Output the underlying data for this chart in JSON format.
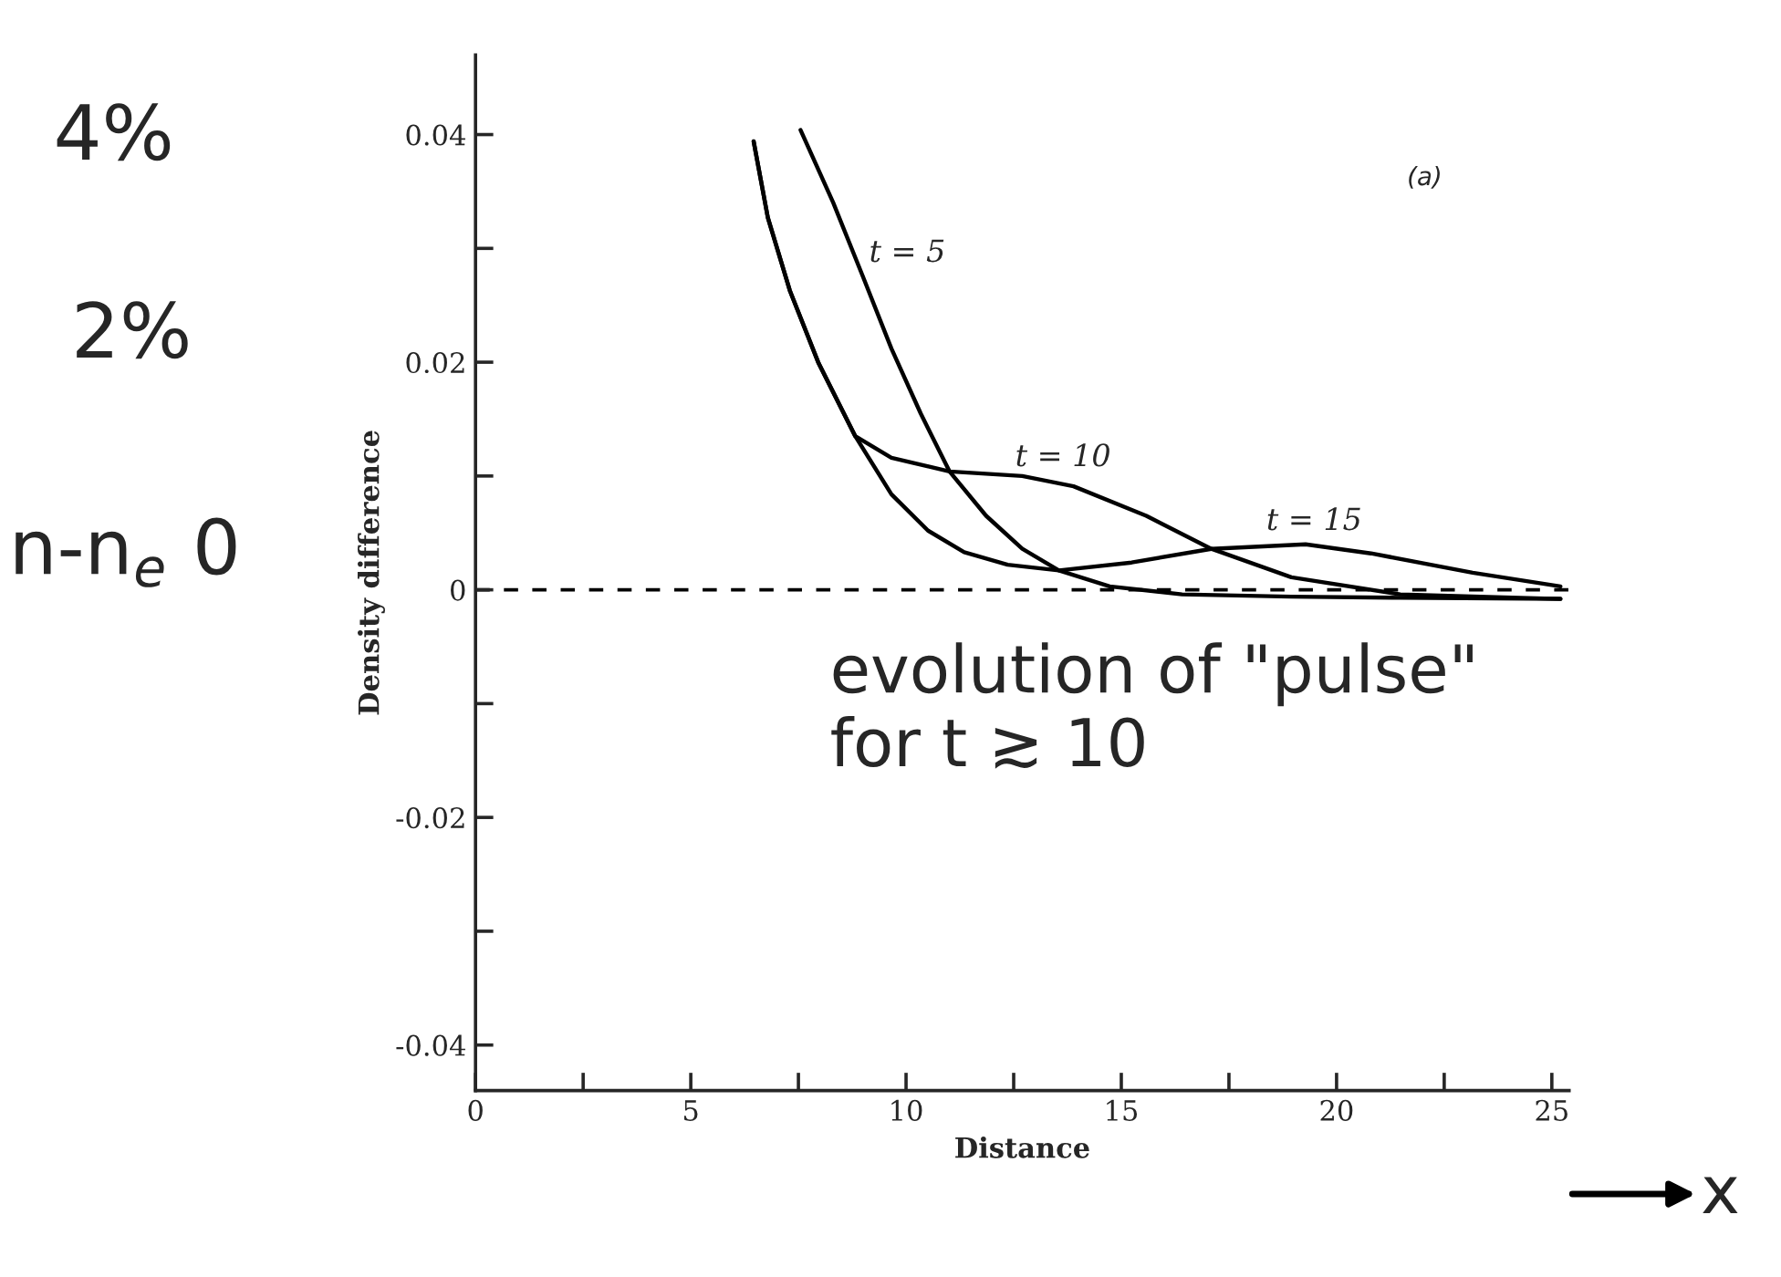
{
  "chart_data": {
    "type": "line",
    "xlabel": "Distance",
    "ylabel": "Density difference",
    "xlim": [
      0,
      25.4
    ],
    "ylim": [
      -0.044,
      0.047
    ],
    "xticks": [
      0,
      {
        "value": 2.5,
        "label": null
      },
      5,
      {
        "value": 7.5,
        "label": null
      },
      10,
      {
        "value": 12.5,
        "label": null
      },
      15,
      {
        "value": 17.5,
        "label": null
      },
      20,
      {
        "value": 22.5,
        "label": null
      },
      25
    ],
    "yticks": [
      -0.04,
      {
        "value": -0.03,
        "label": null
      },
      -0.02,
      {
        "value": -0.01,
        "label": null
      },
      0,
      {
        "value": 0.01,
        "label": null
      },
      0.02,
      {
        "value": 0.03,
        "label": null
      },
      0.04
    ],
    "grid": false,
    "legend": false,
    "marker": "none",
    "line_style": "solid",
    "ref_lines": [
      {
        "axis": "y",
        "value": 0,
        "line_style": "dashed",
        "color": "#000000"
      }
    ],
    "series": [
      {
        "color": "#000000",
        "x": [
          7.55,
          8.31,
          8.99,
          9.66,
          10.34,
          11.01,
          11.86,
          12.7,
          13.55,
          14.73,
          16.41,
          18.95,
          21.48,
          25.2
        ],
        "values": [
          0.0404,
          0.034,
          0.0276,
          0.0212,
          0.0155,
          0.0104,
          0.0065,
          0.0036,
          0.0017,
          0.0003,
          -0.0004,
          -0.0006,
          -0.0007,
          -0.0008
        ]
      },
      {
        "color": "#000000",
        "x": [
          6.46,
          6.79,
          7.3,
          7.97,
          8.82,
          9.66,
          11.01,
          12.7,
          13.89,
          15.58,
          17.09,
          18.95,
          21.48,
          25.2
        ],
        "values": [
          0.0394,
          0.0327,
          0.0263,
          0.0199,
          0.0135,
          0.0116,
          0.0104,
          0.01,
          0.0091,
          0.0065,
          0.0036,
          0.0011,
          -0.0004,
          -0.0008
        ]
      },
      {
        "color": "#000000",
        "x": [
          6.46,
          6.79,
          7.3,
          7.97,
          8.82,
          9.66,
          10.51,
          11.35,
          12.36,
          13.55,
          15.24,
          17.09,
          19.28,
          20.8,
          23.16,
          25.2
        ],
        "values": [
          0.0394,
          0.0327,
          0.0263,
          0.0199,
          0.0135,
          0.0084,
          0.0052,
          0.0033,
          0.0022,
          0.0017,
          0.0024,
          0.0036,
          0.004,
          0.0032,
          0.0015,
          0.0003
        ]
      }
    ],
    "annotations": [
      "t = 5",
      "t = 10",
      "t = 15",
      "(a)",
      "4%",
      "2%",
      "n-n$_{e}$ 0",
      "evolution of \"pulse\"\nfor t ≳ 10",
      "x"
    ]
  }
}
